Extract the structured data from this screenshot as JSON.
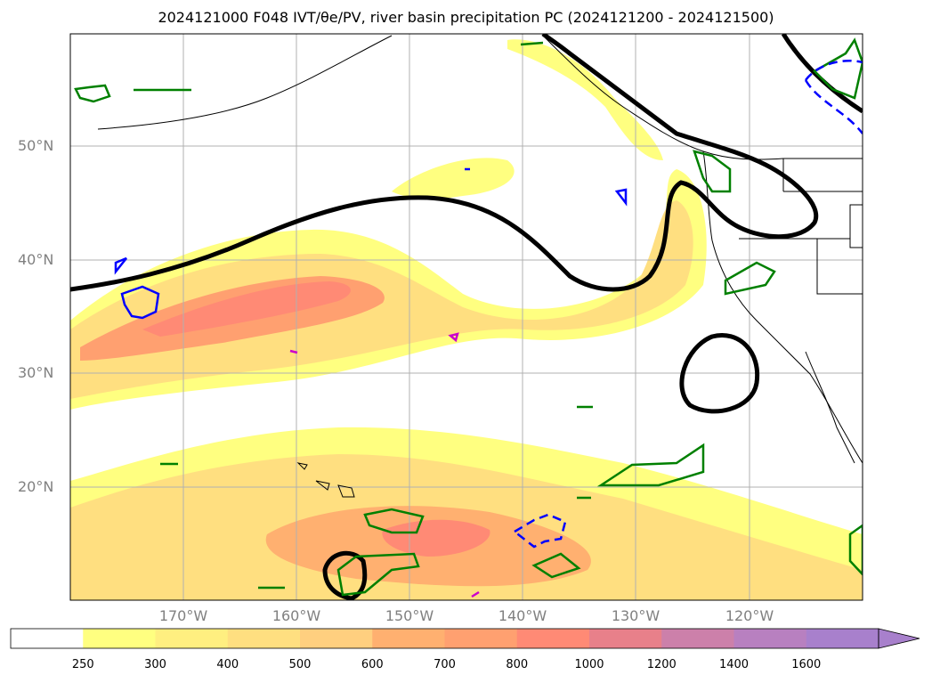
{
  "title": "2024121000 F048 IVT/θe/PV, river basin precipitation PC (2024121200 - 2024121500)",
  "map": {
    "projection": "Mercator",
    "lon_range": [
      "180°",
      "110°W"
    ],
    "lat_range": [
      "10°N",
      "60°N"
    ],
    "grid": true,
    "lat_labels": [
      "50°N",
      "40°N",
      "30°N",
      "20°N"
    ],
    "lon_labels": [
      "170°W",
      "160°W",
      "150°W",
      "140°W",
      "130°W",
      "120°W"
    ]
  },
  "colorbar": {
    "ticks": [
      "250",
      "300",
      "400",
      "500",
      "600",
      "700",
      "800",
      "1000",
      "1200",
      "1400",
      "1600"
    ],
    "colors": [
      "#ffffff",
      "#ffff80",
      "#ffef80",
      "#ffdf80",
      "#ffcf7f",
      "#ffb070",
      "#ffa070",
      "#ff8a75",
      "#e8808a",
      "#cc80aa",
      "#b880c0",
      "#a880cc"
    ]
  },
  "legend_colors": {
    "contour_theta": "#000000",
    "contour_pv_pos": "#008000",
    "contour_pv_neg": "#0000ff",
    "contour_other": "#cc00cc"
  }
}
